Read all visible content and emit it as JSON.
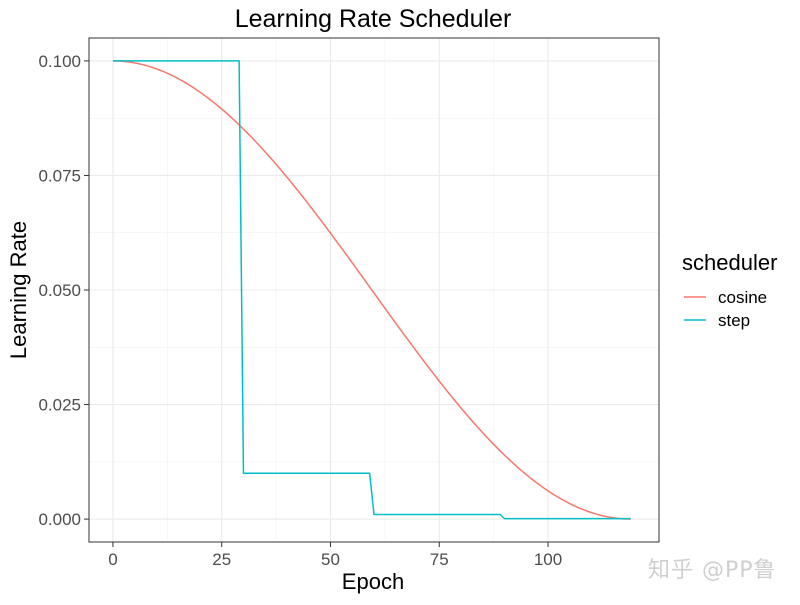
{
  "chart_data": {
    "type": "line",
    "title": "Learning Rate Scheduler",
    "xlabel": "Epoch",
    "ylabel": "Learning Rate",
    "xlim": [
      -5.5,
      125.5
    ],
    "ylim": [
      -0.005,
      0.105
    ],
    "xticks": [
      0,
      25,
      50,
      75,
      100
    ],
    "xtick_labels": [
      "0",
      "25",
      "50",
      "75",
      "100"
    ],
    "yticks": [
      0,
      0.025,
      0.05,
      0.075,
      0.1
    ],
    "ytick_labels": [
      "0.000",
      "0.025",
      "0.050",
      "0.075",
      "0.100"
    ],
    "grid": true,
    "legend": {
      "title": "scheduler",
      "placement": "right",
      "entries": [
        "cosine",
        "step"
      ]
    },
    "series": [
      {
        "name": "cosine",
        "color": "#F8766D",
        "x": [
          0,
          5,
          10,
          15,
          20,
          25,
          30,
          35,
          40,
          45,
          50,
          55,
          60,
          65,
          70,
          75,
          80,
          85,
          90,
          95,
          100,
          105,
          110,
          115,
          119
        ],
        "values": [
          0.1,
          0.09957,
          0.0983,
          0.0962,
          0.0933,
          0.08966,
          0.08535,
          0.08044,
          0.075,
          0.06913,
          0.06294,
          0.05653,
          0.05,
          0.04347,
          0.03706,
          0.03087,
          0.025,
          0.01956,
          0.01465,
          0.01034,
          0.0067,
          0.0038,
          0.0017,
          0.00043,
          0.0
        ]
      },
      {
        "name": "step",
        "color": "#00BFC4",
        "x": [
          0,
          29,
          30,
          59,
          60,
          89,
          90,
          119
        ],
        "values": [
          0.1,
          0.1,
          0.01,
          0.01,
          0.001,
          0.001,
          0.0001,
          0.0001
        ]
      }
    ]
  },
  "watermark": "知乎 @PP鲁"
}
